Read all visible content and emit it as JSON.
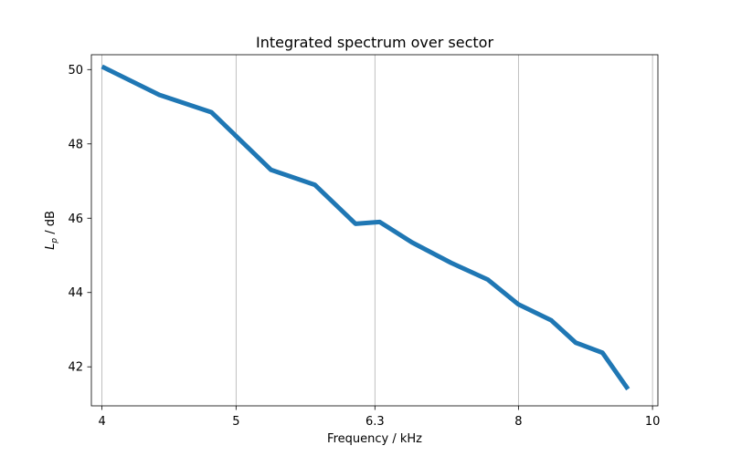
{
  "chart_data": {
    "type": "line",
    "title": "Integrated spectrum over sector",
    "xlabel": "Frequency / kHz",
    "ylabel": {
      "base": "L",
      "subscript": "p",
      "rest": " / dB"
    },
    "x_scale": "log",
    "xlim": [
      3.93,
      10.09
    ],
    "ylim": [
      40.95,
      50.4
    ],
    "x_ticks": [
      4,
      5,
      6.3,
      8,
      10
    ],
    "x_tick_labels": [
      "4",
      "5",
      "6.3",
      "8",
      "10"
    ],
    "y_ticks": [
      42,
      44,
      46,
      48,
      50
    ],
    "y_tick_labels": [
      "42",
      "44",
      "46",
      "48",
      "50"
    ],
    "grid": "x-major",
    "series": [
      {
        "color": "#1f77b4",
        "x": [
          4.0,
          4.4,
          4.8,
          5.3,
          5.7,
          6.1,
          6.35,
          6.7,
          7.15,
          7.6,
          8.0,
          8.45,
          8.8,
          9.2,
          9.6
        ],
        "y": [
          50.08,
          49.32,
          48.85,
          47.3,
          46.9,
          45.85,
          45.9,
          45.35,
          44.8,
          44.35,
          43.68,
          43.25,
          42.65,
          42.38,
          41.4
        ]
      }
    ]
  }
}
